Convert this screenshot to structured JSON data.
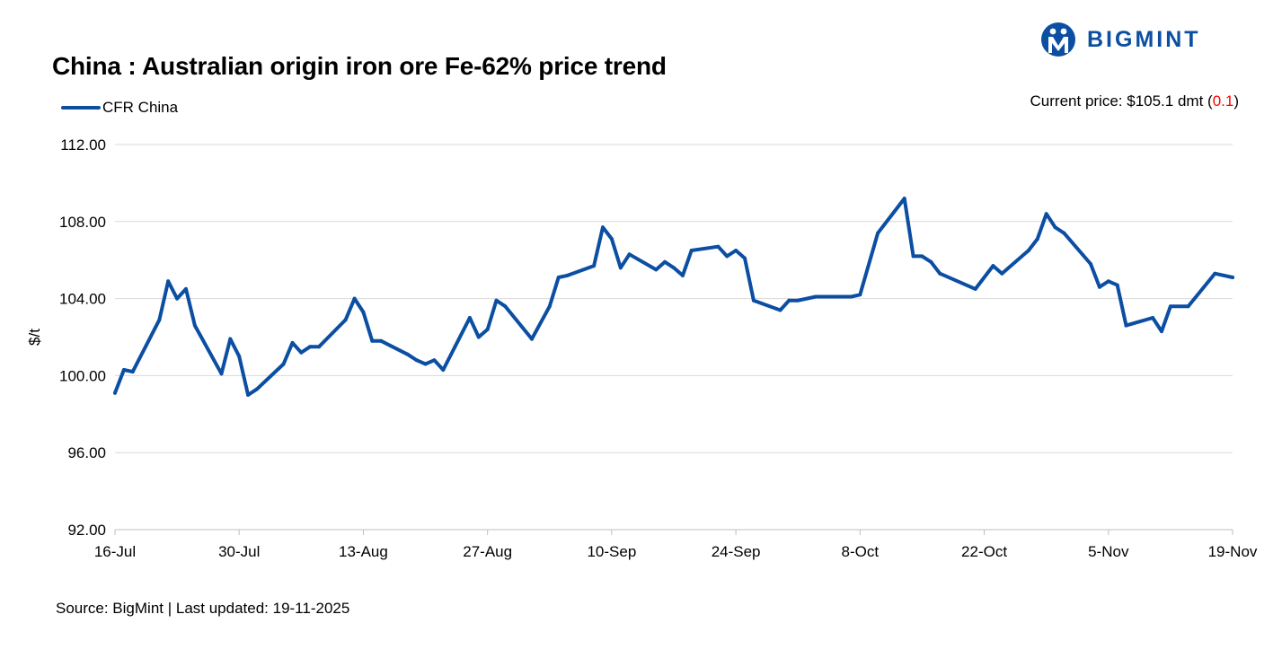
{
  "header": {
    "title": "China : Australian origin iron ore Fe-62% price trend",
    "logo_text": "BIGMINT",
    "current_price_label": "Current price: $105.1 dmt (",
    "current_price_change": "0.1",
    "current_price_suffix": ")"
  },
  "footer": {
    "source": "Source: BigMint | Last updated: 19-11-2025"
  },
  "colors": {
    "line": "#0b4ea2",
    "grid": "#d9d9d9",
    "logo": "#0b4ea2",
    "change": "#ff0000"
  },
  "chart_data": {
    "type": "line",
    "title": "China : Australian origin iron ore Fe-62% price trend",
    "xlabel": "",
    "ylabel": "$/t",
    "ylim": [
      92,
      112
    ],
    "yticks": [
      "92.00",
      "96.00",
      "100.00",
      "104.00",
      "108.00",
      "112.00"
    ],
    "xlim": [
      "2025-07-16",
      "2025-11-19"
    ],
    "xticks": [
      {
        "date": "2025-07-16",
        "label": "16-Jul"
      },
      {
        "date": "2025-07-30",
        "label": "30-Jul"
      },
      {
        "date": "2025-08-13",
        "label": "13-Aug"
      },
      {
        "date": "2025-08-27",
        "label": "27-Aug"
      },
      {
        "date": "2025-09-10",
        "label": "10-Sep"
      },
      {
        "date": "2025-09-24",
        "label": "24-Sep"
      },
      {
        "date": "2025-10-08",
        "label": "8-Oct"
      },
      {
        "date": "2025-10-22",
        "label": "22-Oct"
      },
      {
        "date": "2025-11-05",
        "label": "5-Nov"
      },
      {
        "date": "2025-11-19",
        "label": "19-Nov"
      }
    ],
    "grid": true,
    "legend": "top-left",
    "series": [
      {
        "name": "CFR China",
        "points": [
          [
            "2025-07-16",
            99.1
          ],
          [
            "2025-07-17",
            100.3
          ],
          [
            "2025-07-18",
            100.2
          ],
          [
            "2025-07-21",
            102.9
          ],
          [
            "2025-07-22",
            104.9
          ],
          [
            "2025-07-23",
            104.0
          ],
          [
            "2025-07-24",
            104.5
          ],
          [
            "2025-07-25",
            102.6
          ],
          [
            "2025-07-28",
            100.1
          ],
          [
            "2025-07-29",
            101.9
          ],
          [
            "2025-07-30",
            101.0
          ],
          [
            "2025-07-31",
            99.0
          ],
          [
            "2025-08-01",
            99.3
          ],
          [
            "2025-08-04",
            100.6
          ],
          [
            "2025-08-05",
            101.7
          ],
          [
            "2025-08-06",
            101.2
          ],
          [
            "2025-08-07",
            101.5
          ],
          [
            "2025-08-08",
            101.5
          ],
          [
            "2025-08-11",
            102.9
          ],
          [
            "2025-08-12",
            104.0
          ],
          [
            "2025-08-13",
            103.3
          ],
          [
            "2025-08-14",
            101.8
          ],
          [
            "2025-08-15",
            101.8
          ],
          [
            "2025-08-18",
            101.1
          ],
          [
            "2025-08-19",
            100.8
          ],
          [
            "2025-08-20",
            100.6
          ],
          [
            "2025-08-21",
            100.8
          ],
          [
            "2025-08-22",
            100.3
          ],
          [
            "2025-08-25",
            103.0
          ],
          [
            "2025-08-26",
            102.0
          ],
          [
            "2025-08-27",
            102.4
          ],
          [
            "2025-08-28",
            103.9
          ],
          [
            "2025-08-29",
            103.6
          ],
          [
            "2025-09-01",
            101.9
          ],
          [
            "2025-09-03",
            103.6
          ],
          [
            "2025-09-04",
            105.1
          ],
          [
            "2025-09-05",
            105.2
          ],
          [
            "2025-09-08",
            105.7
          ],
          [
            "2025-09-09",
            107.7
          ],
          [
            "2025-09-10",
            107.1
          ],
          [
            "2025-09-11",
            105.6
          ],
          [
            "2025-09-12",
            106.3
          ],
          [
            "2025-09-15",
            105.5
          ],
          [
            "2025-09-16",
            105.9
          ],
          [
            "2025-09-17",
            105.6
          ],
          [
            "2025-09-18",
            105.2
          ],
          [
            "2025-09-19",
            106.5
          ],
          [
            "2025-09-22",
            106.7
          ],
          [
            "2025-09-23",
            106.2
          ],
          [
            "2025-09-24",
            106.5
          ],
          [
            "2025-09-25",
            106.1
          ],
          [
            "2025-09-26",
            103.9
          ],
          [
            "2025-09-29",
            103.4
          ],
          [
            "2025-09-30",
            103.9
          ],
          [
            "2025-10-01",
            103.9
          ],
          [
            "2025-10-03",
            104.1
          ],
          [
            "2025-10-07",
            104.1
          ],
          [
            "2025-10-08",
            104.2
          ],
          [
            "2025-10-10",
            107.4
          ],
          [
            "2025-10-13",
            109.2
          ],
          [
            "2025-10-14",
            106.2
          ],
          [
            "2025-10-15",
            106.2
          ],
          [
            "2025-10-16",
            105.9
          ],
          [
            "2025-10-17",
            105.3
          ],
          [
            "2025-10-21",
            104.5
          ],
          [
            "2025-10-23",
            105.7
          ],
          [
            "2025-10-24",
            105.3
          ],
          [
            "2025-10-27",
            106.5
          ],
          [
            "2025-10-28",
            107.1
          ],
          [
            "2025-10-29",
            108.4
          ],
          [
            "2025-10-30",
            107.7
          ],
          [
            "2025-10-31",
            107.4
          ],
          [
            "2025-11-03",
            105.8
          ],
          [
            "2025-11-04",
            104.6
          ],
          [
            "2025-11-05",
            104.9
          ],
          [
            "2025-11-06",
            104.7
          ],
          [
            "2025-11-07",
            102.6
          ],
          [
            "2025-11-10",
            103.0
          ],
          [
            "2025-11-11",
            102.3
          ],
          [
            "2025-11-12",
            103.6
          ],
          [
            "2025-11-14",
            103.6
          ],
          [
            "2025-11-17",
            105.3
          ],
          [
            "2025-11-19",
            105.1
          ]
        ]
      }
    ]
  }
}
